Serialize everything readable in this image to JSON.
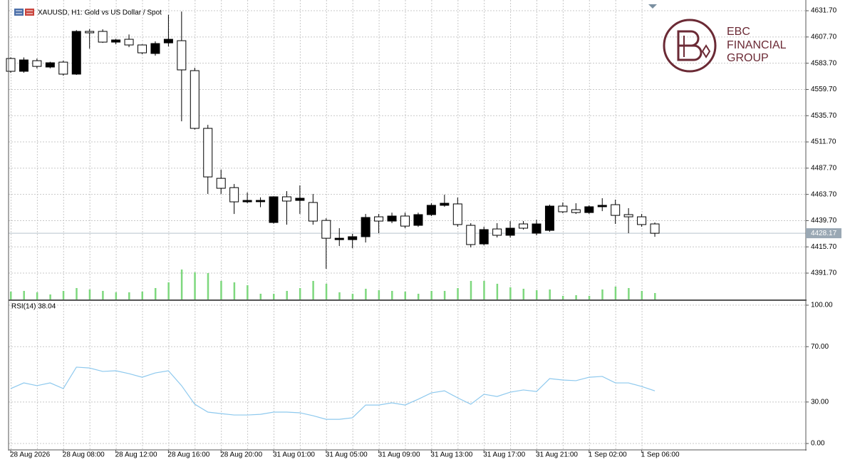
{
  "chart_data": [
    {
      "type": "candlestick",
      "title": "XAUUSD, H1:  Gold vs US Dollar / Spot",
      "categories": [
        "28 Aug 2026",
        null,
        null,
        null,
        "28 Aug 08:00",
        null,
        null,
        null,
        "28 Aug 12:00",
        null,
        null,
        null,
        "28 Aug 16:00",
        null,
        null,
        null,
        "28 Aug 20:00",
        null,
        null,
        null,
        "31 Aug 01:00",
        null,
        null,
        null,
        "31 Aug 05:00",
        null,
        null,
        null,
        "31 Aug 09:00",
        null,
        null,
        null,
        "31 Aug 13:00",
        null,
        null,
        null,
        "31 Aug 17:00",
        null,
        null,
        null,
        "31 Aug 21:00",
        null,
        null,
        null,
        "1 Sep 02:00",
        null,
        null,
        null,
        "1 Sep 06:00",
        null
      ],
      "open": [
        4588.0,
        4576.3,
        4586.0,
        4580.2,
        4584.7,
        4573.7,
        4612.8,
        4612.8,
        4603.0,
        4605.6,
        4600.4,
        4592.6,
        4602.3,
        4604.3,
        4576.9,
        4524.1,
        4478.4,
        4469.9,
        4456.9,
        4457.0,
        4438.0,
        4461.5,
        4458.2,
        4456.3,
        4439.9,
        4422.3,
        4422.3,
        4425.0,
        4443.2,
        4439.3,
        4443.9,
        4435.4,
        4445.2,
        4453.7,
        4455.0,
        4435.4,
        4418.4,
        4432.1,
        4426.3,
        4436.7,
        4428.2,
        4430.8,
        4453.0,
        4449.7,
        4447.1,
        4452.4,
        4454.3,
        4445.2,
        4443.2,
        4436.7
      ],
      "high": [
        4589.0,
        4589.0,
        4588.0,
        4585.0,
        4586.0,
        4614.0,
        4615.0,
        4614.7,
        4606.0,
        4610.0,
        4601.0,
        4603.7,
        4628.0,
        4631.0,
        4579.5,
        4527.3,
        4486.3,
        4473.2,
        4465.4,
        4461.0,
        4462.0,
        4466.7,
        4471.9,
        4464.1,
        4441.9,
        4432.8,
        4427.6,
        4445.8,
        4445.8,
        4447.0,
        4447.0,
        4447.0,
        4455.6,
        4463.4,
        4460.8,
        4437.4,
        4434.1,
        4437.4,
        4439.3,
        4439.3,
        4440.6,
        4454.3,
        4456.3,
        4455.6,
        4453.7,
        4460.2,
        4458.9,
        4451.1,
        4445.8,
        4438.0
      ],
      "low": [
        4575.0,
        4575.0,
        4578.9,
        4579.0,
        4572.3,
        4573.0,
        4597.0,
        4602.3,
        4601.0,
        4598.4,
        4592.0,
        4590.6,
        4599.0,
        4530.6,
        4523.0,
        4464.1,
        4464.1,
        4445.8,
        4455.6,
        4452.0,
        4437.0,
        4436.0,
        4445.8,
        4436.0,
        4395.6,
        4416.5,
        4414.5,
        4419.7,
        4428.2,
        4437.4,
        4432.8,
        4434.0,
        4443.9,
        4452.4,
        4434.1,
        4415.2,
        4417.1,
        4424.3,
        4424.3,
        4431.5,
        4426.3,
        4429.5,
        4446.5,
        4445.8,
        4445.8,
        4448.4,
        4436.7,
        4428.2,
        4434.1,
        4424.9
      ],
      "close": [
        4576.3,
        4586.7,
        4580.8,
        4584.1,
        4573.7,
        4612.8,
        4611.5,
        4603.0,
        4605.0,
        4600.4,
        4593.2,
        4601.7,
        4605.6,
        4577.6,
        4524.1,
        4479.7,
        4469.3,
        4456.9,
        4458.2,
        4458.2,
        4461.5,
        4457.6,
        4460.2,
        4439.3,
        4423.6,
        4423.6,
        4425.0,
        4442.6,
        4439.3,
        4443.9,
        4434.7,
        4445.2,
        4453.7,
        4455.6,
        4436.1,
        4417.8,
        4431.5,
        4426.3,
        4432.8,
        4432.8,
        4436.7,
        4453.0,
        4447.8,
        4447.1,
        4452.4,
        4453.7,
        4444.5,
        4443.2,
        4436.1,
        4428.17
      ],
      "volume": [
        11000,
        12000,
        10000,
        7000,
        12000,
        16000,
        14000,
        12000,
        10000,
        10000,
        11000,
        16000,
        24000,
        42000,
        38000,
        37000,
        26000,
        24000,
        20000,
        8000,
        8000,
        12000,
        16000,
        26000,
        22000,
        10000,
        8000,
        15000,
        13000,
        12000,
        11000,
        8000,
        12000,
        12000,
        16000,
        26000,
        26000,
        22000,
        17000,
        15000,
        13000,
        14000,
        5000,
        6000,
        5000,
        14000,
        18000,
        16000,
        12000,
        9000
      ],
      "current_price": 4428.17,
      "ylim": [
        4367.6,
        4636.3
      ],
      "yticks": [
        {
          "value": 4631.7,
          "label": "4631.70"
        },
        {
          "value": 4607.7,
          "label": "4607.70"
        },
        {
          "value": 4583.7,
          "label": "4583.70"
        },
        {
          "value": 4559.7,
          "label": "4559.70"
        },
        {
          "value": 4535.7,
          "label": "4535.70"
        },
        {
          "value": 4511.7,
          "label": "4511.70"
        },
        {
          "value": 4487.7,
          "label": "4487.70"
        },
        {
          "value": 4463.7,
          "label": "4463.70"
        },
        {
          "value": 4439.7,
          "label": "4439.70"
        },
        {
          "value": 4415.7,
          "label": "4415.70"
        },
        {
          "value": 4391.7,
          "label": "4391.70"
        }
      ],
      "bull_color": "#000000",
      "bear_color": "#ffffff",
      "volume_color": "#7ed87e",
      "grid": true
    },
    {
      "type": "line",
      "title": "RSI(14) 38.04",
      "series": [
        {
          "name": "RSI(14)",
          "color": "#8ec9ee",
          "values": [
            39.7,
            43.8,
            41.8,
            43.8,
            39.7,
            55.2,
            54.6,
            52.1,
            52.6,
            50.5,
            47.9,
            51.0,
            52.6,
            41.8,
            28.4,
            22.7,
            21.6,
            20.6,
            20.6,
            21.1,
            22.7,
            22.7,
            22.2,
            20.1,
            17.5,
            17.5,
            18.6,
            27.8,
            27.8,
            29.4,
            27.8,
            32.0,
            36.6,
            38.1,
            33.0,
            28.4,
            35.6,
            34.0,
            37.1,
            38.7,
            37.6,
            46.9,
            45.9,
            45.4,
            47.9,
            48.5,
            43.8,
            43.8,
            41.2,
            38.04
          ]
        }
      ],
      "ylim": [
        -4.1,
        103.1
      ],
      "yticks": [
        {
          "value": 100,
          "label": "100.00"
        },
        {
          "value": 70,
          "label": "70.00"
        },
        {
          "value": 30,
          "label": "30.00"
        },
        {
          "value": 0,
          "label": "0.00"
        }
      ],
      "grid": true
    }
  ],
  "logo": {
    "line1": "EBC",
    "line2": "FINANCIAL",
    "line3": "GROUP"
  }
}
